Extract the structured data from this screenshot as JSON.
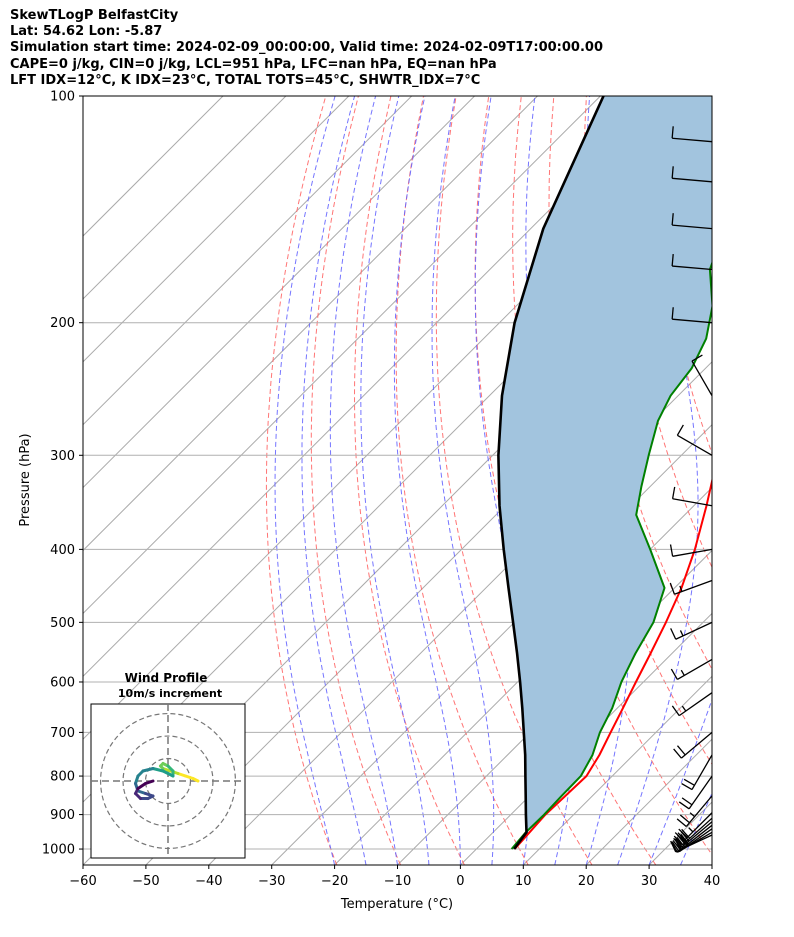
{
  "header": {
    "lines": [
      "SkewTLogP BelfastCity",
      "Lat: 54.62   Lon: -5.87",
      "Simulation start time: 2024-02-09_00:00:00, Valid time: 2024-02-09T17:00:00.00",
      "CAPE=0 j/kg, CIN=0 j/kg, LCL=951 hPa, LFC=nan hPa, EQ=nan hPa",
      "LFT IDX=12°C, K IDX=23°C, TOTAL TOTS=45°C, SHWTR_IDX=7°C"
    ]
  },
  "chart_data": {
    "type": "line",
    "subtype": "skew-t log-p",
    "xlabel": "Temperature (°C)",
    "ylabel": "Pressure (hPa)",
    "xlim": [
      -60,
      40
    ],
    "ylim": [
      1050,
      100
    ],
    "x_ticks": [
      -60,
      -50,
      -40,
      -30,
      -20,
      -10,
      0,
      10,
      20,
      30,
      40
    ],
    "x_tick_labels": [
      "−60",
      "−50",
      "−40",
      "−30",
      "−20",
      "−10",
      "0",
      "10",
      "20",
      "30",
      "40"
    ],
    "y_ticks": [
      1000,
      900,
      800,
      700,
      600,
      500,
      400,
      300,
      200,
      100
    ],
    "y_tick_labels": [
      "1000",
      "900",
      "800",
      "700",
      "600",
      "500",
      "400",
      "300",
      "200",
      "100"
    ],
    "grid": true,
    "series": [
      {
        "name": "Temperature",
        "color": "#ff0000",
        "pressure": [
          1000,
          950,
          900,
          850,
          800,
          750,
          700,
          650,
          600,
          550,
          500,
          450,
          400,
          350,
          300,
          270,
          250,
          230,
          210,
          190,
          170,
          150,
          130,
          115,
          100
        ],
        "values": [
          6.1,
          5.8,
          5.5,
          5.7,
          5.9,
          4.6,
          2.8,
          0.9,
          -1.2,
          -3.4,
          -5.9,
          -8.9,
          -12.9,
          -18.0,
          -24.2,
          -28.2,
          -31.3,
          -34.4,
          -37.8,
          -43.2,
          -47.9,
          -51.0,
          -52.6,
          -51.9,
          -49.0
        ]
      },
      {
        "name": "Dewpoint",
        "color": "#008000",
        "pressure": [
          1000,
          950,
          900,
          850,
          800,
          750,
          700,
          650,
          600,
          550,
          500,
          450,
          400,
          360,
          330,
          300,
          270,
          250,
          230,
          210,
          190,
          170,
          150,
          130,
          115,
          100
        ],
        "values": [
          5.6,
          5.2,
          5.3,
          5.1,
          5.0,
          3.5,
          1.1,
          -0.8,
          -3.5,
          -5.8,
          -7.9,
          -11.6,
          -20.0,
          -27.7,
          -31.4,
          -35.2,
          -39.2,
          -41.2,
          -42.2,
          -44.6,
          -48.8,
          -55.0,
          -59.2,
          -63.5,
          -67.0,
          -70.0
        ]
      },
      {
        "name": "Parcel profile",
        "color": "#000000",
        "pressure": [
          1000,
          950,
          900,
          850,
          800,
          750,
          700,
          650,
          600,
          550,
          500,
          450,
          400,
          350,
          300,
          250,
          200,
          150,
          100
        ],
        "values": [
          6.0,
          5.3,
          2.4,
          -0.6,
          -3.8,
          -7.2,
          -11.0,
          -15.1,
          -19.6,
          -24.6,
          -30.2,
          -36.4,
          -43.3,
          -50.9,
          -59.1,
          -68.0,
          -77.6,
          -88.0,
          -99.5
        ]
      }
    ],
    "wind_barbs": {
      "pressure": [
        958,
        950,
        940,
        930,
        920,
        910,
        895,
        850,
        800,
        750,
        700,
        620,
        560,
        500,
        440,
        400,
        350,
        300,
        250,
        200,
        170,
        150,
        130,
        115
      ],
      "speed_kt": [
        20,
        25,
        30,
        30,
        30,
        30,
        25,
        25,
        20,
        20,
        20,
        15,
        15,
        15,
        15,
        10,
        10,
        10,
        10,
        10,
        10,
        10,
        10,
        10
      ],
      "direction_deg": [
        245,
        240,
        235,
        232,
        230,
        228,
        225,
        220,
        215,
        210,
        230,
        235,
        240,
        245,
        250,
        260,
        280,
        300,
        330,
        275,
        275,
        275,
        275,
        275
      ]
    },
    "inset": {
      "title": "Wind Profile",
      "subtitle": "10m/s increment",
      "rings_ms": [
        10,
        20,
        30
      ],
      "hodograph_u": [
        6.0,
        5.0,
        3.5,
        2.0,
        0.5,
        -1.0,
        -1.5,
        -1.0,
        0.0,
        1.0,
        1.0,
        -1.0,
        -3.0,
        -5.0,
        -6.0,
        -6.5,
        -6.0,
        -4.5,
        -3.0,
        -4.0,
        -5.5,
        -6.5,
        -6.0,
        -4.5,
        -3.0
      ],
      "hodograph_v": [
        0.0,
        0.5,
        1.0,
        1.5,
        2.0,
        2.5,
        3.0,
        3.5,
        3.0,
        2.0,
        1.0,
        2.0,
        2.5,
        2.0,
        1.0,
        -0.5,
        -2.0,
        -2.5,
        -3.0,
        -3.5,
        -3.5,
        -2.5,
        -1.5,
        -0.5,
        0.0
      ]
    },
    "background_lines": {
      "isotherms_color": "#aaaaaa",
      "dry_adiabats_color": "#ff6666",
      "moist_adiabats_color": "#6666ff",
      "mixing_ratio_color": "#9933cc",
      "cape_fill_color": "#a2c4de"
    }
  }
}
